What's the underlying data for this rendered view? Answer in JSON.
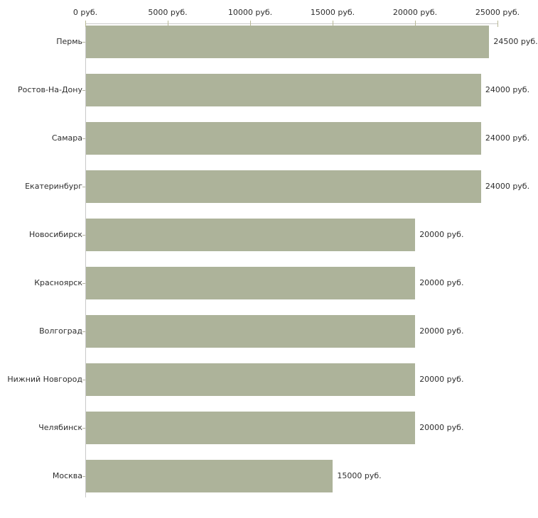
{
  "chart_data": {
    "type": "bar",
    "orientation": "horizontal",
    "title": "",
    "xlabel": "",
    "ylabel": "",
    "categories": [
      "Пермь",
      "Ростов-На-Дону",
      "Самара",
      "Екатеринбург",
      "Новосибирск",
      "Красноярск",
      "Волгоград",
      "Нижний Новгород",
      "Челябинск",
      "Москва"
    ],
    "values": [
      24500,
      24000,
      24000,
      24000,
      20000,
      20000,
      20000,
      20000,
      20000,
      15000
    ],
    "value_labels": [
      "24500 руб.",
      "24000 руб.",
      "24000 руб.",
      "24000 руб.",
      "20000 руб.",
      "20000 руб.",
      "20000 руб.",
      "20000 руб.",
      "20000 руб.",
      "15000 руб."
    ],
    "x_axis": {
      "position": "top",
      "range": [
        0,
        25000
      ],
      "ticks": [
        0,
        5000,
        10000,
        15000,
        20000,
        25000
      ],
      "tick_labels": [
        "0 руб.",
        "5000 руб.",
        "10000 руб.",
        "15000 руб.",
        "20000 руб.",
        "25000 руб."
      ]
    },
    "grid": false,
    "legend": false,
    "colors": {
      "bar_fill": "#adb39a",
      "axis_line": "#c9c9c9",
      "x_tick_mark": "#b9b996",
      "category_tick_mark": "#b3b3a0",
      "text": "#2e2e2e",
      "background": "#ffffff"
    }
  }
}
